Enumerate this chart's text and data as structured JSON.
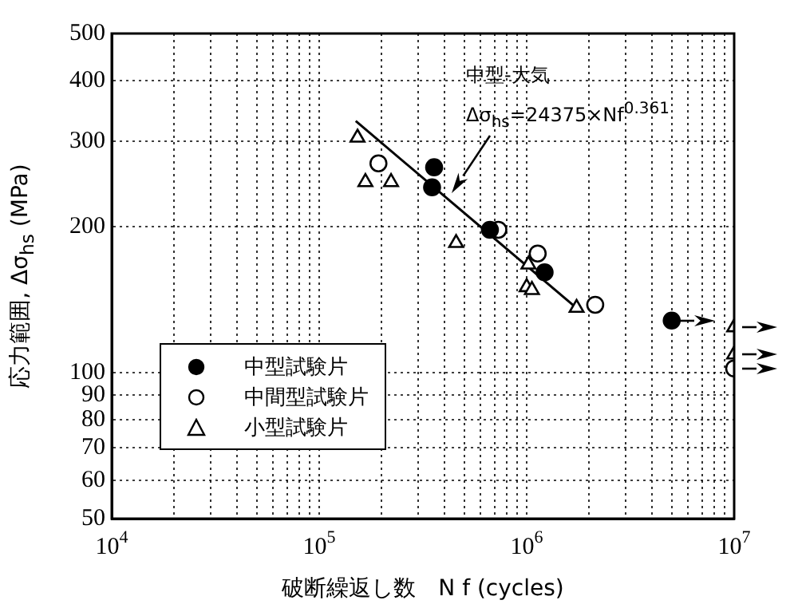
{
  "chart_data": {
    "type": "scatter",
    "xlabel": "破断繰返し数　N f (cycles)",
    "ylabel": "応力範囲, Δσ$_{hs}$ (MPa)",
    "log": "xy",
    "grid": true,
    "legend": "bottom left",
    "xlim": [
      10000,
      10000000
    ],
    "ylim": [
      50,
      500
    ],
    "xticks": [
      {
        "value": 10000,
        "label": "10$^{4}$"
      },
      {
        "value": 20000,
        "label": null
      },
      {
        "value": 30000,
        "label": null
      },
      {
        "value": 40000,
        "label": null
      },
      {
        "value": 50000,
        "label": null
      },
      {
        "value": 60000,
        "label": null
      },
      {
        "value": 70000,
        "label": null
      },
      {
        "value": 80000,
        "label": null
      },
      {
        "value": 90000,
        "label": null
      },
      {
        "value": 100000,
        "label": "10$^{5}$"
      },
      {
        "value": 200000,
        "label": null
      },
      {
        "value": 300000,
        "label": null
      },
      {
        "value": 400000,
        "label": null
      },
      {
        "value": 500000,
        "label": null
      },
      {
        "value": 600000,
        "label": null
      },
      {
        "value": 700000,
        "label": null
      },
      {
        "value": 800000,
        "label": null
      },
      {
        "value": 900000,
        "label": null
      },
      {
        "value": 1000000,
        "label": "10$^{6}$"
      },
      {
        "value": 2000000,
        "label": null
      },
      {
        "value": 3000000,
        "label": null
      },
      {
        "value": 4000000,
        "label": null
      },
      {
        "value": 5000000,
        "label": null
      },
      {
        "value": 6000000,
        "label": null
      },
      {
        "value": 7000000,
        "label": null
      },
      {
        "value": 8000000,
        "label": null
      },
      {
        "value": 9000000,
        "label": null
      },
      {
        "value": 10000000,
        "label": "10$^{7}$"
      }
    ],
    "yticks": [
      50,
      60,
      70,
      80,
      90,
      100,
      200,
      300,
      400,
      500
    ],
    "annotations": [
      "中型-大気",
      "Δσ$_{hs}$=24375×Nf$^{0.361}$"
    ],
    "series": [
      {
        "name": "中型試験片",
        "color": "#000000",
        "marker": "circle",
        "x": [
          358000,
          350000,
          665000,
          1220000,
          5000000
        ],
        "values": [
          265,
          241,
          197,
          161,
          128
        ]
      },
      {
        "name": "中間型試験片",
        "color": "#ffffff",
        "marker": "circle",
        "x": [
          193000,
          730000,
          1130000,
          2140000,
          10000000
        ],
        "values": [
          270,
          197,
          176,
          138,
          102
        ]
      },
      {
        "name": "小型試験片",
        "color": "#ffffff",
        "marker": "triangle",
        "x": [
          153000,
          167000,
          222000,
          457000,
          1020000,
          1000000,
          1060000,
          1740000,
          10000000,
          10000000
        ],
        "values": [
          305,
          247,
          247,
          185,
          167,
          150,
          148,
          136,
          124,
          109
        ]
      },
      {
        "type": "line",
        "color": "#000000",
        "marker": "none",
        "line_style": "solid",
        "x": [
          150000,
          1700000
        ],
        "values": [
          330,
          137
        ]
      }
    ]
  }
}
